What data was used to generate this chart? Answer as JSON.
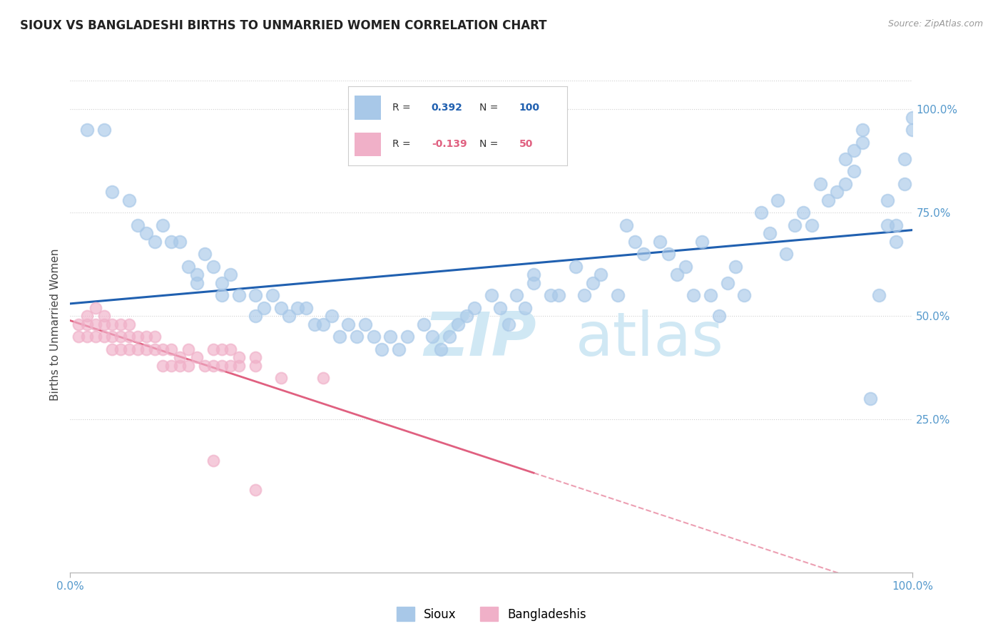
{
  "title": "SIOUX VS BANGLADESHI BIRTHS TO UNMARRIED WOMEN CORRELATION CHART",
  "source_text": "Source: ZipAtlas.com",
  "ylabel": "Births to Unmarried Women",
  "x_min": 0.0,
  "x_max": 1.0,
  "y_min": -0.12,
  "y_max": 1.08,
  "y_tick_positions": [
    0.25,
    0.5,
    0.75,
    1.0
  ],
  "y_tick_labels": [
    "25.0%",
    "50.0%",
    "75.0%",
    "100.0%"
  ],
  "x_tick_positions": [
    0.0,
    1.0
  ],
  "x_tick_labels": [
    "0.0%",
    "100.0%"
  ],
  "sioux_color": "#a8c8e8",
  "bangladeshi_color": "#f0b0c8",
  "trend_sioux_color": "#2060b0",
  "trend_bangladeshi_color": "#e06080",
  "sioux_r": 0.392,
  "bangladeshi_r": -0.139,
  "watermark_color": "#d0e8f4",
  "background_color": "#ffffff",
  "grid_color": "#d0d0d0",
  "tick_label_color": "#5599cc",
  "title_color": "#222222",
  "source_color": "#999999",
  "ylabel_color": "#444444",
  "sioux_points": [
    [
      0.02,
      0.95
    ],
    [
      0.04,
      0.95
    ],
    [
      0.05,
      0.8
    ],
    [
      0.07,
      0.78
    ],
    [
      0.08,
      0.72
    ],
    [
      0.09,
      0.7
    ],
    [
      0.1,
      0.68
    ],
    [
      0.11,
      0.72
    ],
    [
      0.12,
      0.68
    ],
    [
      0.13,
      0.68
    ],
    [
      0.14,
      0.62
    ],
    [
      0.15,
      0.6
    ],
    [
      0.15,
      0.58
    ],
    [
      0.16,
      0.65
    ],
    [
      0.17,
      0.62
    ],
    [
      0.18,
      0.58
    ],
    [
      0.18,
      0.55
    ],
    [
      0.19,
      0.6
    ],
    [
      0.2,
      0.55
    ],
    [
      0.22,
      0.55
    ],
    [
      0.22,
      0.5
    ],
    [
      0.23,
      0.52
    ],
    [
      0.24,
      0.55
    ],
    [
      0.25,
      0.52
    ],
    [
      0.26,
      0.5
    ],
    [
      0.27,
      0.52
    ],
    [
      0.28,
      0.52
    ],
    [
      0.29,
      0.48
    ],
    [
      0.3,
      0.48
    ],
    [
      0.31,
      0.5
    ],
    [
      0.32,
      0.45
    ],
    [
      0.33,
      0.48
    ],
    [
      0.34,
      0.45
    ],
    [
      0.35,
      0.48
    ],
    [
      0.36,
      0.45
    ],
    [
      0.37,
      0.42
    ],
    [
      0.38,
      0.45
    ],
    [
      0.39,
      0.42
    ],
    [
      0.4,
      0.45
    ],
    [
      0.42,
      0.48
    ],
    [
      0.43,
      0.45
    ],
    [
      0.44,
      0.42
    ],
    [
      0.45,
      0.45
    ],
    [
      0.46,
      0.48
    ],
    [
      0.47,
      0.5
    ],
    [
      0.48,
      0.52
    ],
    [
      0.5,
      0.55
    ],
    [
      0.51,
      0.52
    ],
    [
      0.52,
      0.48
    ],
    [
      0.53,
      0.55
    ],
    [
      0.54,
      0.52
    ],
    [
      0.55,
      0.58
    ],
    [
      0.55,
      0.6
    ],
    [
      0.57,
      0.55
    ],
    [
      0.58,
      0.55
    ],
    [
      0.6,
      0.62
    ],
    [
      0.61,
      0.55
    ],
    [
      0.62,
      0.58
    ],
    [
      0.63,
      0.6
    ],
    [
      0.65,
      0.55
    ],
    [
      0.66,
      0.72
    ],
    [
      0.67,
      0.68
    ],
    [
      0.68,
      0.65
    ],
    [
      0.7,
      0.68
    ],
    [
      0.71,
      0.65
    ],
    [
      0.72,
      0.6
    ],
    [
      0.73,
      0.62
    ],
    [
      0.74,
      0.55
    ],
    [
      0.75,
      0.68
    ],
    [
      0.76,
      0.55
    ],
    [
      0.77,
      0.5
    ],
    [
      0.78,
      0.58
    ],
    [
      0.79,
      0.62
    ],
    [
      0.8,
      0.55
    ],
    [
      0.82,
      0.75
    ],
    [
      0.83,
      0.7
    ],
    [
      0.84,
      0.78
    ],
    [
      0.85,
      0.65
    ],
    [
      0.86,
      0.72
    ],
    [
      0.87,
      0.75
    ],
    [
      0.88,
      0.72
    ],
    [
      0.89,
      0.82
    ],
    [
      0.9,
      0.78
    ],
    [
      0.91,
      0.8
    ],
    [
      0.92,
      0.82
    ],
    [
      0.92,
      0.88
    ],
    [
      0.93,
      0.85
    ],
    [
      0.93,
      0.9
    ],
    [
      0.94,
      0.95
    ],
    [
      0.94,
      0.92
    ],
    [
      0.95,
      0.3
    ],
    [
      0.96,
      0.55
    ],
    [
      0.97,
      0.72
    ],
    [
      0.97,
      0.78
    ],
    [
      0.98,
      0.72
    ],
    [
      0.98,
      0.68
    ],
    [
      0.99,
      0.88
    ],
    [
      0.99,
      0.82
    ],
    [
      1.0,
      0.95
    ],
    [
      1.0,
      0.98
    ]
  ],
  "bangladeshi_points": [
    [
      0.01,
      0.48
    ],
    [
      0.01,
      0.45
    ],
    [
      0.02,
      0.5
    ],
    [
      0.02,
      0.48
    ],
    [
      0.02,
      0.45
    ],
    [
      0.03,
      0.52
    ],
    [
      0.03,
      0.48
    ],
    [
      0.03,
      0.45
    ],
    [
      0.04,
      0.5
    ],
    [
      0.04,
      0.48
    ],
    [
      0.04,
      0.45
    ],
    [
      0.05,
      0.48
    ],
    [
      0.05,
      0.45
    ],
    [
      0.05,
      0.42
    ],
    [
      0.06,
      0.48
    ],
    [
      0.06,
      0.45
    ],
    [
      0.06,
      0.42
    ],
    [
      0.07,
      0.48
    ],
    [
      0.07,
      0.45
    ],
    [
      0.07,
      0.42
    ],
    [
      0.08,
      0.45
    ],
    [
      0.08,
      0.42
    ],
    [
      0.09,
      0.45
    ],
    [
      0.09,
      0.42
    ],
    [
      0.1,
      0.45
    ],
    [
      0.1,
      0.42
    ],
    [
      0.11,
      0.42
    ],
    [
      0.11,
      0.38
    ],
    [
      0.12,
      0.42
    ],
    [
      0.12,
      0.38
    ],
    [
      0.13,
      0.4
    ],
    [
      0.13,
      0.38
    ],
    [
      0.14,
      0.42
    ],
    [
      0.14,
      0.38
    ],
    [
      0.15,
      0.4
    ],
    [
      0.16,
      0.38
    ],
    [
      0.17,
      0.42
    ],
    [
      0.17,
      0.38
    ],
    [
      0.18,
      0.42
    ],
    [
      0.18,
      0.38
    ],
    [
      0.19,
      0.42
    ],
    [
      0.19,
      0.38
    ],
    [
      0.2,
      0.4
    ],
    [
      0.2,
      0.38
    ],
    [
      0.22,
      0.4
    ],
    [
      0.22,
      0.38
    ],
    [
      0.25,
      0.35
    ],
    [
      0.3,
      0.35
    ],
    [
      0.17,
      0.15
    ],
    [
      0.22,
      0.08
    ]
  ]
}
